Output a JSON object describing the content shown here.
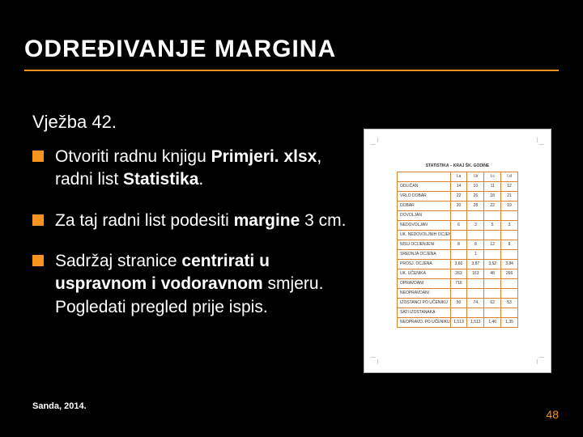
{
  "colors": {
    "background": "#000000",
    "title_text": "#ffffff",
    "title_underline": "#f7931e",
    "body_text": "#ffffff",
    "bullet_marker": "#f7931e",
    "footer_text": "#ffffff",
    "page_number": "#f7931e",
    "page_bg": "#ffffff",
    "page_border": "#bbbbbb",
    "table_border": "#d9822b",
    "table_text": "#333333"
  },
  "title": "ODREĐIVANJE MARGINA",
  "exercise_label": "Vježba 42.",
  "bullets": [
    {
      "runs": [
        {
          "t": "Otvoriti radnu knjigu ",
          "b": false
        },
        {
          "t": "Primjeri. xlsx",
          "b": true
        },
        {
          "t": ", radni list ",
          "b": false
        },
        {
          "t": "Statistika",
          "b": true
        },
        {
          "t": ".",
          "b": false
        }
      ]
    },
    {
      "runs": [
        {
          "t": "Za taj radni list podesiti ",
          "b": false
        },
        {
          "t": "margine",
          "b": true
        },
        {
          "t": " 3 cm.",
          "b": false
        }
      ]
    },
    {
      "runs": [
        {
          "t": "Sadržaj stranice ",
          "b": false
        },
        {
          "t": "centrirati u uspravnom i vodoravnom",
          "b": true
        },
        {
          "t": " smjeru. Pogledati pregled prije ispis.",
          "b": false
        }
      ]
    }
  ],
  "footer_left": "Sanda, 2014.",
  "page_number": "48",
  "preview": {
    "title": "STATISTIKA – KRAJ ŠK. GODINE",
    "table_border_color": "#d9822b",
    "columns": [
      "",
      "I.a",
      "I.b",
      "I.c",
      "I.d"
    ],
    "rows": [
      [
        "ODLIČAN",
        "14",
        "10",
        "11",
        "12"
      ],
      [
        "VRLO DOBAR",
        "22",
        "26",
        "18",
        "21"
      ],
      [
        "DOBAR",
        "20",
        "28",
        "22",
        "19"
      ],
      [
        "DOVOLJAN",
        "",
        "",
        "",
        ""
      ],
      [
        "NEDOVOLJAN",
        "6",
        "3",
        "5",
        "3"
      ],
      [
        "UK. NEDOVOLJNIH OCJENA",
        "",
        "",
        "",
        ""
      ],
      [
        "NISU OCIJENJENI",
        "8",
        "8",
        "12",
        "8"
      ],
      [
        "SREDNJA OCJENA",
        "",
        "1",
        "",
        ""
      ],
      [
        "PROSJ. OCJENA",
        "3,60",
        "3,87",
        "3,52",
        "3,84"
      ],
      [
        "UK. UČENIKA",
        "263",
        "163",
        "48",
        "266"
      ],
      [
        "OPRAVDANI",
        "716",
        "",
        "",
        ""
      ],
      [
        "NEOPRAVDANI",
        "",
        "",
        "",
        ""
      ],
      [
        "IZOSTANCI PO UČENIKU",
        "50",
        "74",
        "62",
        "53"
      ],
      [
        "SATI IZOSTANAKA",
        "",
        "",
        "",
        ""
      ],
      [
        "NEOPRAVD. PO UČENIKU",
        "1,513",
        "1,513",
        "1,46",
        "1,35"
      ]
    ]
  }
}
